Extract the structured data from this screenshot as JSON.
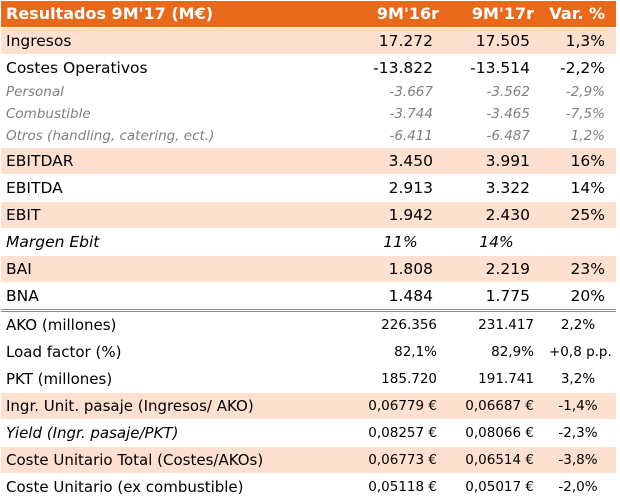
{
  "header": {
    "title": "Resultados 9M'17 (M€)",
    "col1": "9M'16r",
    "col2": "9M'17r",
    "col3": "Var. %"
  },
  "rows": [
    {
      "label": "Ingresos",
      "v1": "17.272",
      "v2": "17.505",
      "v3": "1,3%"
    },
    {
      "label": "Costes Operativos",
      "v1": "-13.822",
      "v2": "-13.514",
      "v3": "-2,2%"
    },
    {
      "label": "Personal",
      "v1": "-3.667",
      "v2": "-3.562",
      "v3": "-2,9%"
    },
    {
      "label": "Combustible",
      "v1": "-3.744",
      "v2": "-3.465",
      "v3": "-7,5%"
    },
    {
      "label": "Otros (handling, catering, ect.)",
      "v1": "-6.411",
      "v2": "-6.487",
      "v3": "1,2%"
    },
    {
      "label": "EBITDAR",
      "v1": "3.450",
      "v2": "3.991",
      "v3": "16%"
    },
    {
      "label": "EBITDA",
      "v1": "2.913",
      "v2": "3.322",
      "v3": "14%"
    },
    {
      "label": "EBIT",
      "v1": "1.942",
      "v2": "2.430",
      "v3": "25%"
    },
    {
      "label": "Margen Ebit",
      "v1": "11%",
      "v2": "14%",
      "v3": ""
    },
    {
      "label": "BAI",
      "v1": "1.808",
      "v2": "2.219",
      "v3": "23%"
    },
    {
      "label": "BNA",
      "v1": "1.484",
      "v2": "1.775",
      "v3": "20%"
    },
    {
      "label": "AKO (millones)",
      "v1": "226.356",
      "v2": "231.417",
      "v3": "2,2%"
    },
    {
      "label": "Load factor (%)",
      "v1": "82,1%",
      "v2": "82,9%",
      "v3": "+0,8 p.p."
    },
    {
      "label": "PKT (millones)",
      "v1": "185.720",
      "v2": "191.741",
      "v3": "3,2%"
    },
    {
      "label": "Ingr. Unit. pasaje (Ingresos/ AKO)",
      "v1": "0,06779 €",
      "v2": "0,06687 €",
      "v3": "-1,4%"
    },
    {
      "label": "Yield (Ingr. pasaje/PKT)",
      "v1": "0,08257 €",
      "v2": "0,08066 €",
      "v3": "-2,3%"
    },
    {
      "label": "Coste Unitario Total (Costes/AKOs)",
      "v1": "0,06773 €",
      "v2": "0,06514 €",
      "v3": "-3,8%"
    },
    {
      "label": "Coste Unitario (ex combustible)",
      "v1": "0,05118 €",
      "v2": "0,05017 €",
      "v3": "-2,0%"
    }
  ]
}
